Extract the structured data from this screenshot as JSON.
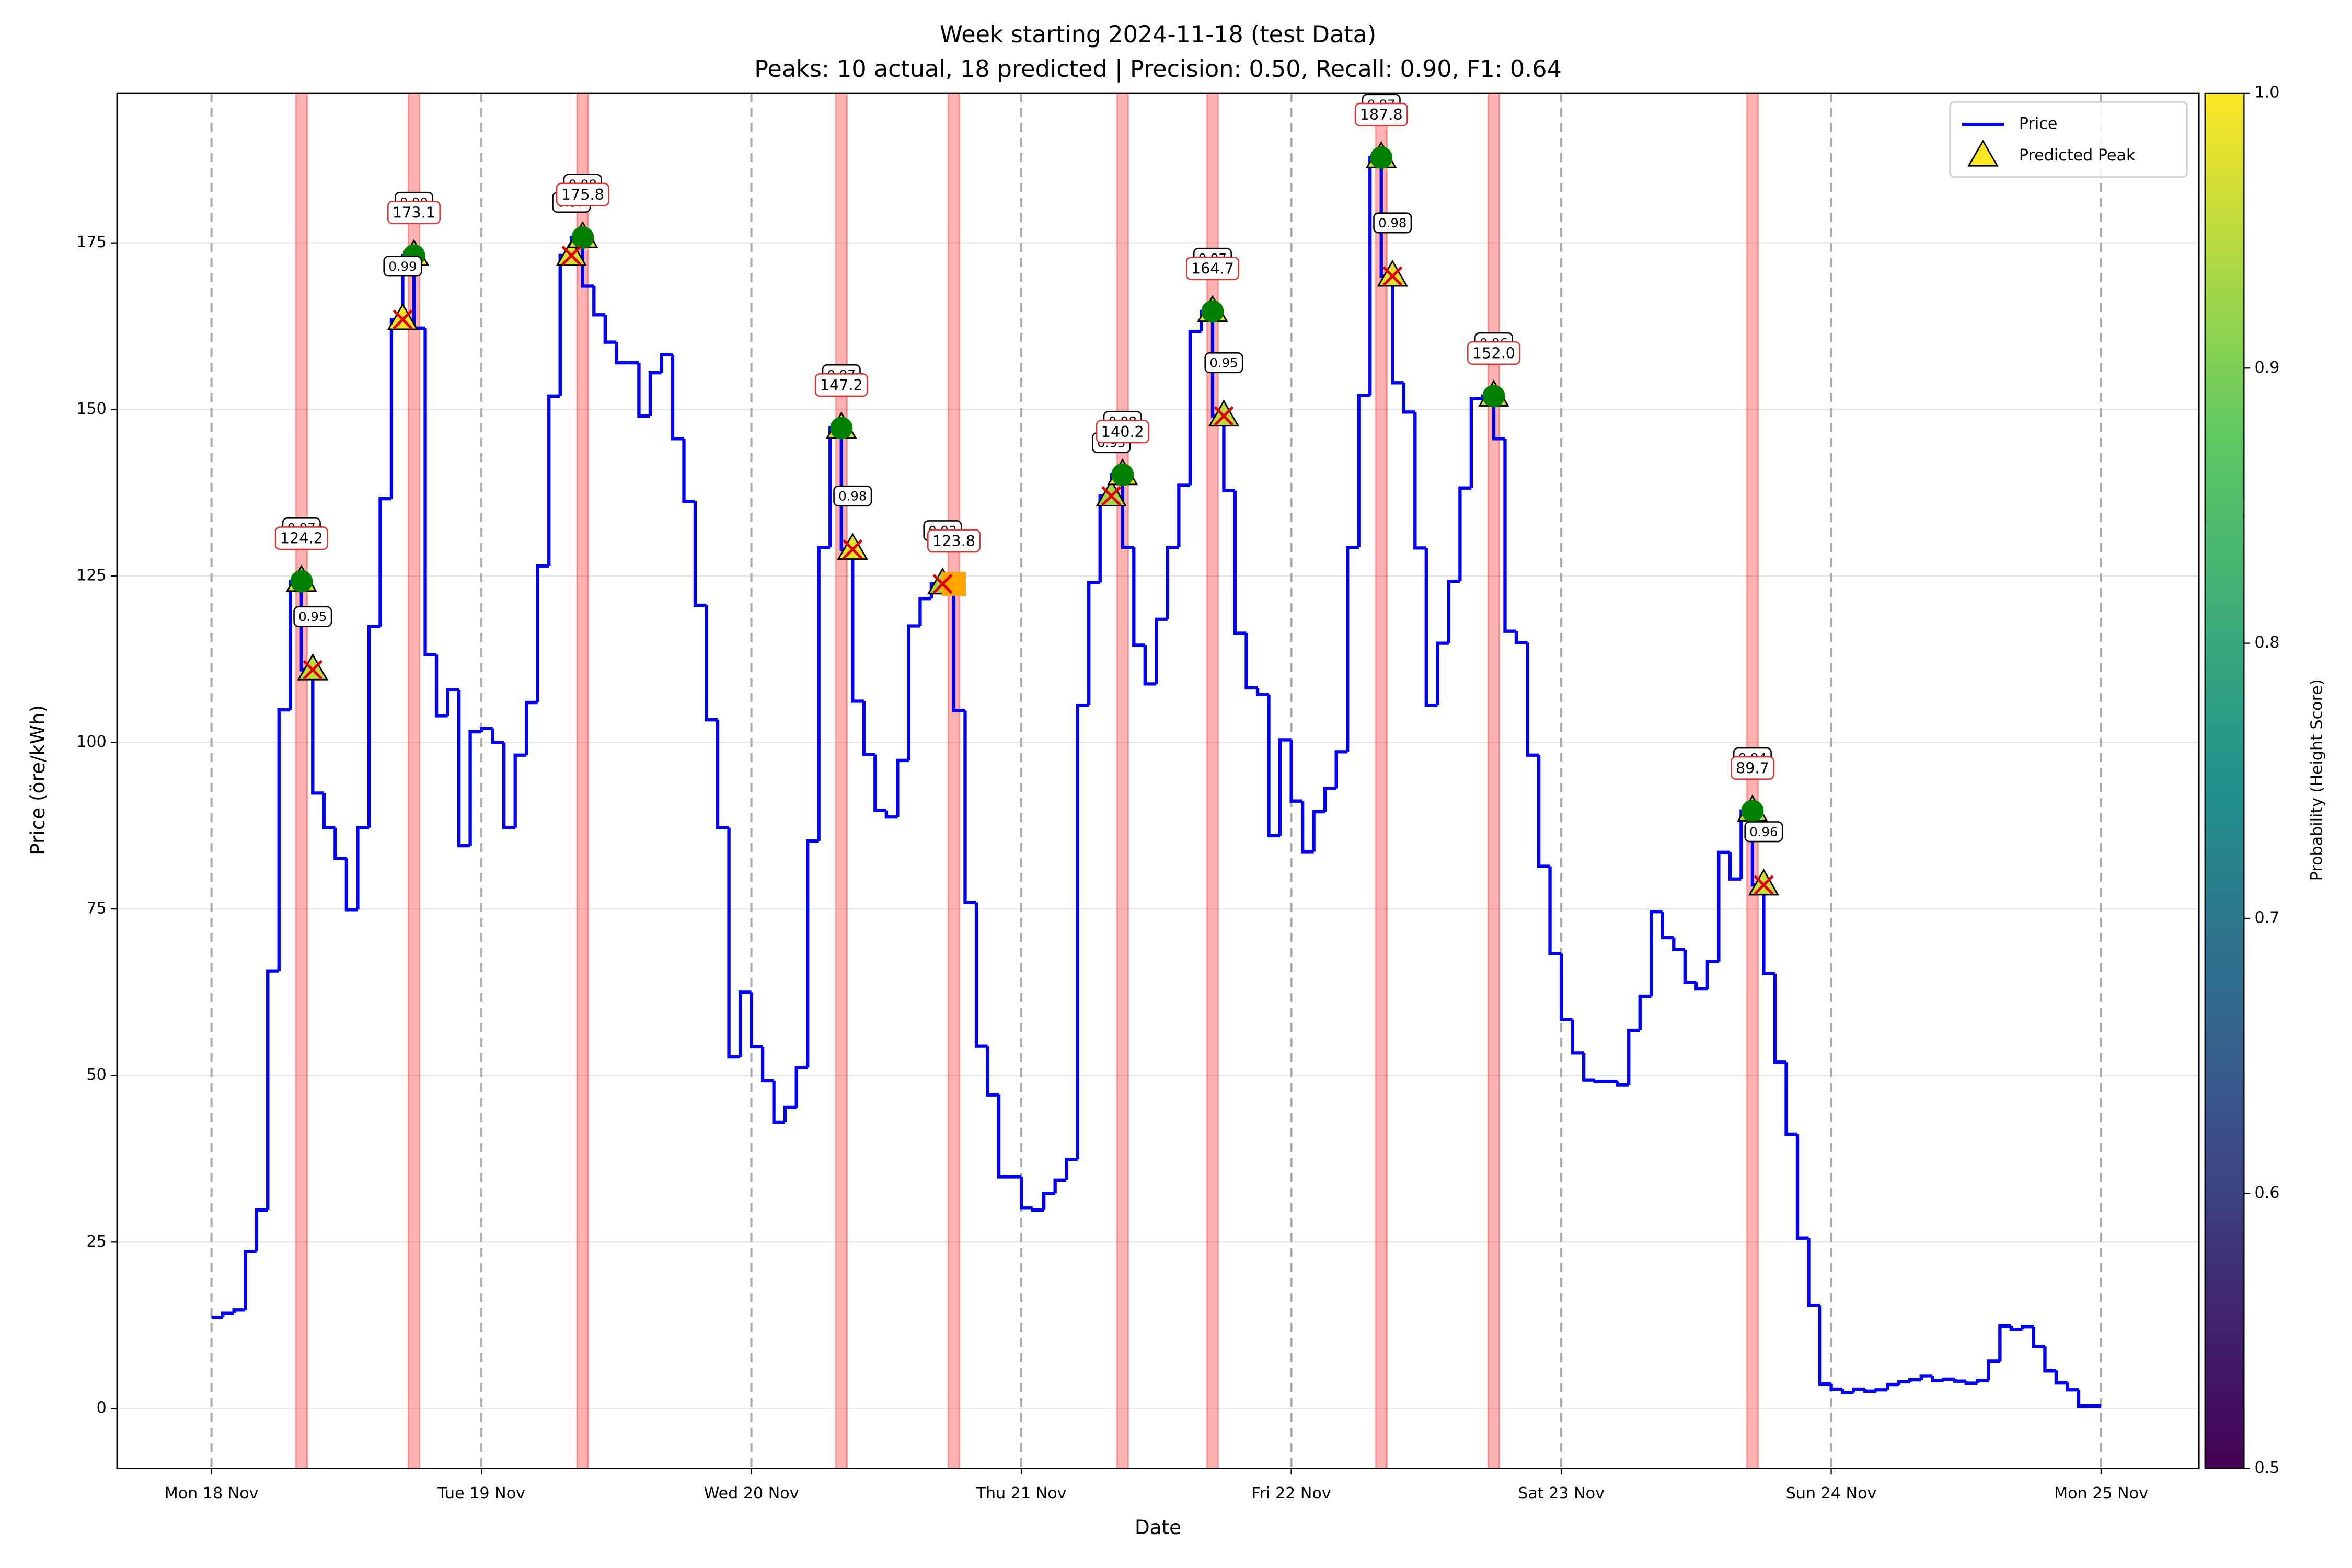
{
  "chart_data": {
    "type": "step",
    "title": "Week starting 2024-11-18 (test Data)",
    "subtitle": "Peaks: 10 actual, 18 predicted | Precision: 0.50, Recall: 0.90, F1: 0.64",
    "x_label": "Date",
    "y_label": "Price (öre/kWh)",
    "x": [
      1,
      2,
      3,
      4,
      5,
      6,
      7,
      8,
      9,
      10,
      11,
      12,
      13,
      14,
      15,
      16,
      17,
      18,
      19,
      20,
      21,
      22,
      23,
      24,
      25,
      26,
      27,
      28,
      29,
      30,
      31,
      32,
      33,
      34,
      35,
      36,
      37,
      38,
      39,
      40,
      41,
      42,
      43,
      44,
      45,
      46,
      47,
      48,
      49,
      50,
      51,
      52,
      53,
      54,
      55,
      56,
      57,
      58,
      59,
      60,
      61,
      62,
      63,
      64,
      65,
      66,
      67,
      68,
      69,
      70,
      71,
      72,
      73,
      74,
      75,
      76,
      77,
      78,
      79,
      80,
      81,
      82,
      83,
      84,
      85,
      86,
      87,
      88,
      89,
      90,
      91,
      92,
      93,
      94,
      95,
      96,
      97,
      98,
      99,
      100,
      101,
      102,
      103,
      104,
      105,
      106,
      107,
      108,
      109,
      110,
      111,
      112,
      113,
      114,
      115,
      116,
      117,
      118,
      119,
      120,
      121,
      122,
      123,
      124,
      125,
      126,
      127,
      128,
      129,
      130,
      131,
      132,
      133,
      134,
      135,
      136,
      137,
      138,
      139,
      140,
      141,
      142,
      143,
      144,
      145,
      146,
      147,
      148,
      149,
      150,
      151,
      152,
      153,
      154,
      155,
      156,
      157,
      158,
      159,
      160,
      161,
      162,
      163,
      164,
      165,
      166,
      167,
      168
    ],
    "series": [
      {
        "name": "Price",
        "color": "#0000ff",
        "values": [
          13.7,
          14.3,
          14.8,
          23.6,
          29.8,
          65.7,
          104.9,
          124.2,
          110.9,
          92.4,
          87.2,
          82.6,
          74.9,
          87.2,
          117.4,
          136.6,
          163.5,
          173.1,
          162.2,
          113.2,
          104.0,
          107.9,
          84.5,
          101.6,
          102.1,
          100.0,
          87.2,
          98.1,
          106.0,
          126.5,
          152.0,
          173.1,
          175.8,
          168.5,
          164.2,
          160.1,
          157.0,
          157.0,
          149.0,
          155.5,
          158.2,
          145.6,
          136.2,
          120.6,
          103.4,
          87.2,
          52.8,
          62.5,
          54.3,
          49.2,
          43.0,
          45.2,
          51.2,
          85.2,
          129.3,
          147.2,
          129.0,
          106.2,
          98.2,
          89.8,
          88.8,
          97.3,
          117.5,
          121.6,
          123.8,
          123.8,
          104.8,
          76.0,
          54.4,
          47.1,
          34.8,
          34.8,
          30.1,
          29.8,
          32.3,
          34.3,
          37.4,
          105.6,
          124.0,
          137.0,
          140.2,
          129.3,
          114.6,
          108.8,
          118.5,
          129.3,
          138.6,
          161.7,
          164.7,
          149.0,
          137.8,
          116.4,
          108.2,
          107.2,
          86.0,
          100.4,
          91.2,
          83.6,
          89.6,
          93.1,
          98.6,
          129.3,
          152.1,
          187.8,
          170.0,
          154.0,
          149.6,
          129.2,
          105.6,
          114.9,
          124.2,
          138.2,
          151.6,
          152.0,
          145.6,
          116.7,
          115.0,
          98.1,
          81.4,
          68.3,
          58.4,
          53.4,
          49.3,
          49.1,
          49.1,
          48.6,
          56.8,
          61.9,
          74.6,
          70.7,
          68.9,
          64.0,
          63.0,
          67.1,
          83.5,
          79.5,
          89.7,
          78.6,
          65.3,
          52.0,
          41.2,
          25.6,
          15.5,
          3.7,
          2.9,
          2.4,
          2.9,
          2.6,
          2.8,
          3.6,
          4.0,
          4.3,
          4.9,
          4.2,
          4.4,
          4.1,
          3.8,
          4.2,
          7.1,
          12.4,
          11.9,
          12.3,
          9.3,
          5.7,
          3.9,
          2.8,
          0.4,
          0.4
        ]
      }
    ],
    "actual_peaks": {
      "x": [
        8,
        18,
        33,
        56,
        66,
        81,
        89,
        104,
        114,
        137
      ],
      "values": [
        124.2,
        173.1,
        175.8,
        147.2,
        123.8,
        140.2,
        164.7,
        187.8,
        152.0,
        89.7
      ],
      "value_labels": [
        "124.2",
        "173.1",
        "175.8",
        "147.2",
        "123.8",
        "140.2",
        "164.7",
        "187.8",
        "152.0",
        "89.7"
      ],
      "detected": [
        true,
        true,
        true,
        true,
        false,
        true,
        true,
        true,
        true,
        true
      ],
      "band_color": "#ff0000",
      "hit_color": "#008000",
      "miss_color": "#ffa500"
    },
    "predicted_peaks": {
      "name": "Predicted Peak",
      "x": [
        8,
        9,
        17,
        18,
        32,
        33,
        56,
        57,
        65,
        80,
        81,
        89,
        90,
        104,
        105,
        114,
        137,
        138
      ],
      "values": [
        124.2,
        110.9,
        163.5,
        173.1,
        173.1,
        175.8,
        147.2,
        129.0,
        123.8,
        137.0,
        140.2,
        164.7,
        149.0,
        187.8,
        170.0,
        152.0,
        89.7,
        78.6
      ],
      "probabilities": [
        0.97,
        0.95,
        0.99,
        0.99,
        0.97,
        0.98,
        0.97,
        0.98,
        0.93,
        0.93,
        0.98,
        0.97,
        0.95,
        0.97,
        0.98,
        0.96,
        0.94,
        0.96
      ],
      "correct": [
        true,
        false,
        false,
        true,
        false,
        true,
        true,
        false,
        false,
        false,
        true,
        true,
        false,
        true,
        false,
        true,
        true,
        false
      ]
    },
    "colorbar": {
      "label": "Probability (Height Score)",
      "colormap": "viridis",
      "lim": [
        0.5,
        1.0
      ],
      "ticks": [
        0.5,
        0.6,
        0.7,
        0.8,
        0.9,
        {
          "value": 1.0,
          "label": "1.0"
        }
      ]
    },
    "xlim": [
      -8.4,
      176.7
    ],
    "xticks": [
      {
        "value": 0,
        "label": "Mon 18 Nov"
      },
      {
        "value": 24,
        "label": "Tue 19 Nov"
      },
      {
        "value": 48,
        "label": "Wed 20 Nov"
      },
      {
        "value": 72,
        "label": "Thu 21 Nov"
      },
      {
        "value": 96,
        "label": "Fri 22 Nov"
      },
      {
        "value": 120,
        "label": "Sat 23 Nov"
      },
      {
        "value": 144,
        "label": "Sun 24 Nov"
      },
      {
        "value": 168,
        "label": "Mon 25 Nov"
      }
    ],
    "ylim": [
      -9,
      197.5
    ],
    "yticks": [
      0,
      25,
      50,
      75,
      100,
      125,
      150,
      175
    ],
    "grid": true,
    "day_lines": true,
    "legend": "upper right"
  }
}
